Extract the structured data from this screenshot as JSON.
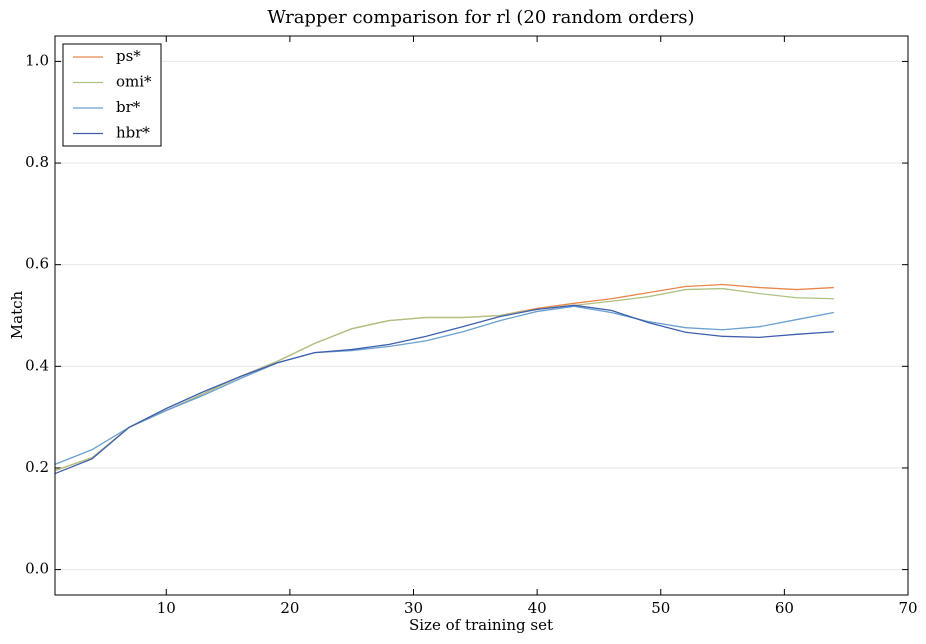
{
  "chart_data": {
    "type": "line",
    "title": "Wrapper comparison for rl (20 random orders)",
    "xlabel": "Size of training set",
    "ylabel": "Match",
    "x": [
      1,
      4,
      7,
      10,
      13,
      16,
      19,
      22,
      25,
      28,
      31,
      34,
      37,
      40,
      43,
      46,
      49,
      52,
      55,
      58,
      61,
      64
    ],
    "series": [
      {
        "name": "ps*",
        "color": "#e8874a",
        "values": [
          0.195,
          0.22,
          0.28,
          0.313,
          0.346,
          0.38,
          0.41,
          0.445,
          0.474,
          0.49,
          0.496,
          0.496,
          0.5,
          0.514,
          0.524,
          0.533,
          0.545,
          0.557,
          0.561,
          0.555,
          0.551,
          0.555
        ]
      },
      {
        "name": "omi*",
        "color": "#aec283",
        "values": [
          0.195,
          0.22,
          0.28,
          0.313,
          0.346,
          0.38,
          0.41,
          0.445,
          0.474,
          0.49,
          0.496,
          0.496,
          0.5,
          0.512,
          0.52,
          0.528,
          0.537,
          0.551,
          0.553,
          0.543,
          0.535,
          0.533
        ]
      },
      {
        "name": "br*",
        "color": "#6a9fcf",
        "values": [
          0.207,
          0.236,
          0.28,
          0.313,
          0.343,
          0.376,
          0.407,
          0.427,
          0.431,
          0.439,
          0.45,
          0.468,
          0.49,
          0.508,
          0.518,
          0.506,
          0.488,
          0.476,
          0.472,
          0.478,
          0.492,
          0.506
        ]
      },
      {
        "name": "hbr*",
        "color": "#3d5fad",
        "values": [
          0.189,
          0.218,
          0.28,
          0.317,
          0.35,
          0.38,
          0.407,
          0.427,
          0.433,
          0.443,
          0.459,
          0.478,
          0.498,
          0.512,
          0.52,
          0.51,
          0.486,
          0.467,
          0.459,
          0.457,
          0.463,
          0.468
        ]
      }
    ],
    "xlim": [
      1,
      70
    ],
    "xticks": [
      10,
      20,
      30,
      40,
      50,
      60,
      70
    ],
    "ylim": [
      -0.05,
      1.05
    ],
    "yticks": [
      {
        "value": 0,
        "label": "0.0"
      },
      {
        "value": 0.2,
        "label": "0.2"
      },
      {
        "value": 0.4,
        "label": "0.4"
      },
      {
        "value": 0.6,
        "label": "0.6"
      },
      {
        "value": 0.8,
        "label": "0.8"
      },
      {
        "value": 1,
        "label": "1.0"
      }
    ],
    "grid": true,
    "legend": "upper left"
  }
}
